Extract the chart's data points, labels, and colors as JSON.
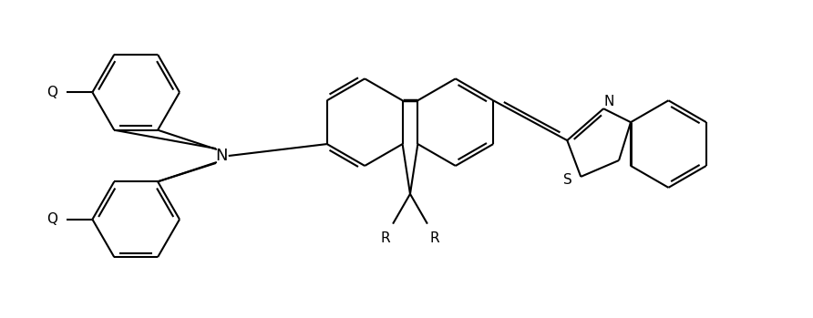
{
  "bg_color": "#ffffff",
  "line_color": "#000000",
  "lw": 1.5,
  "figsize": [
    8.92,
    3.49
  ],
  "dpi": 100,
  "xlim": [
    0,
    892
  ],
  "ylim": [
    0,
    349
  ]
}
